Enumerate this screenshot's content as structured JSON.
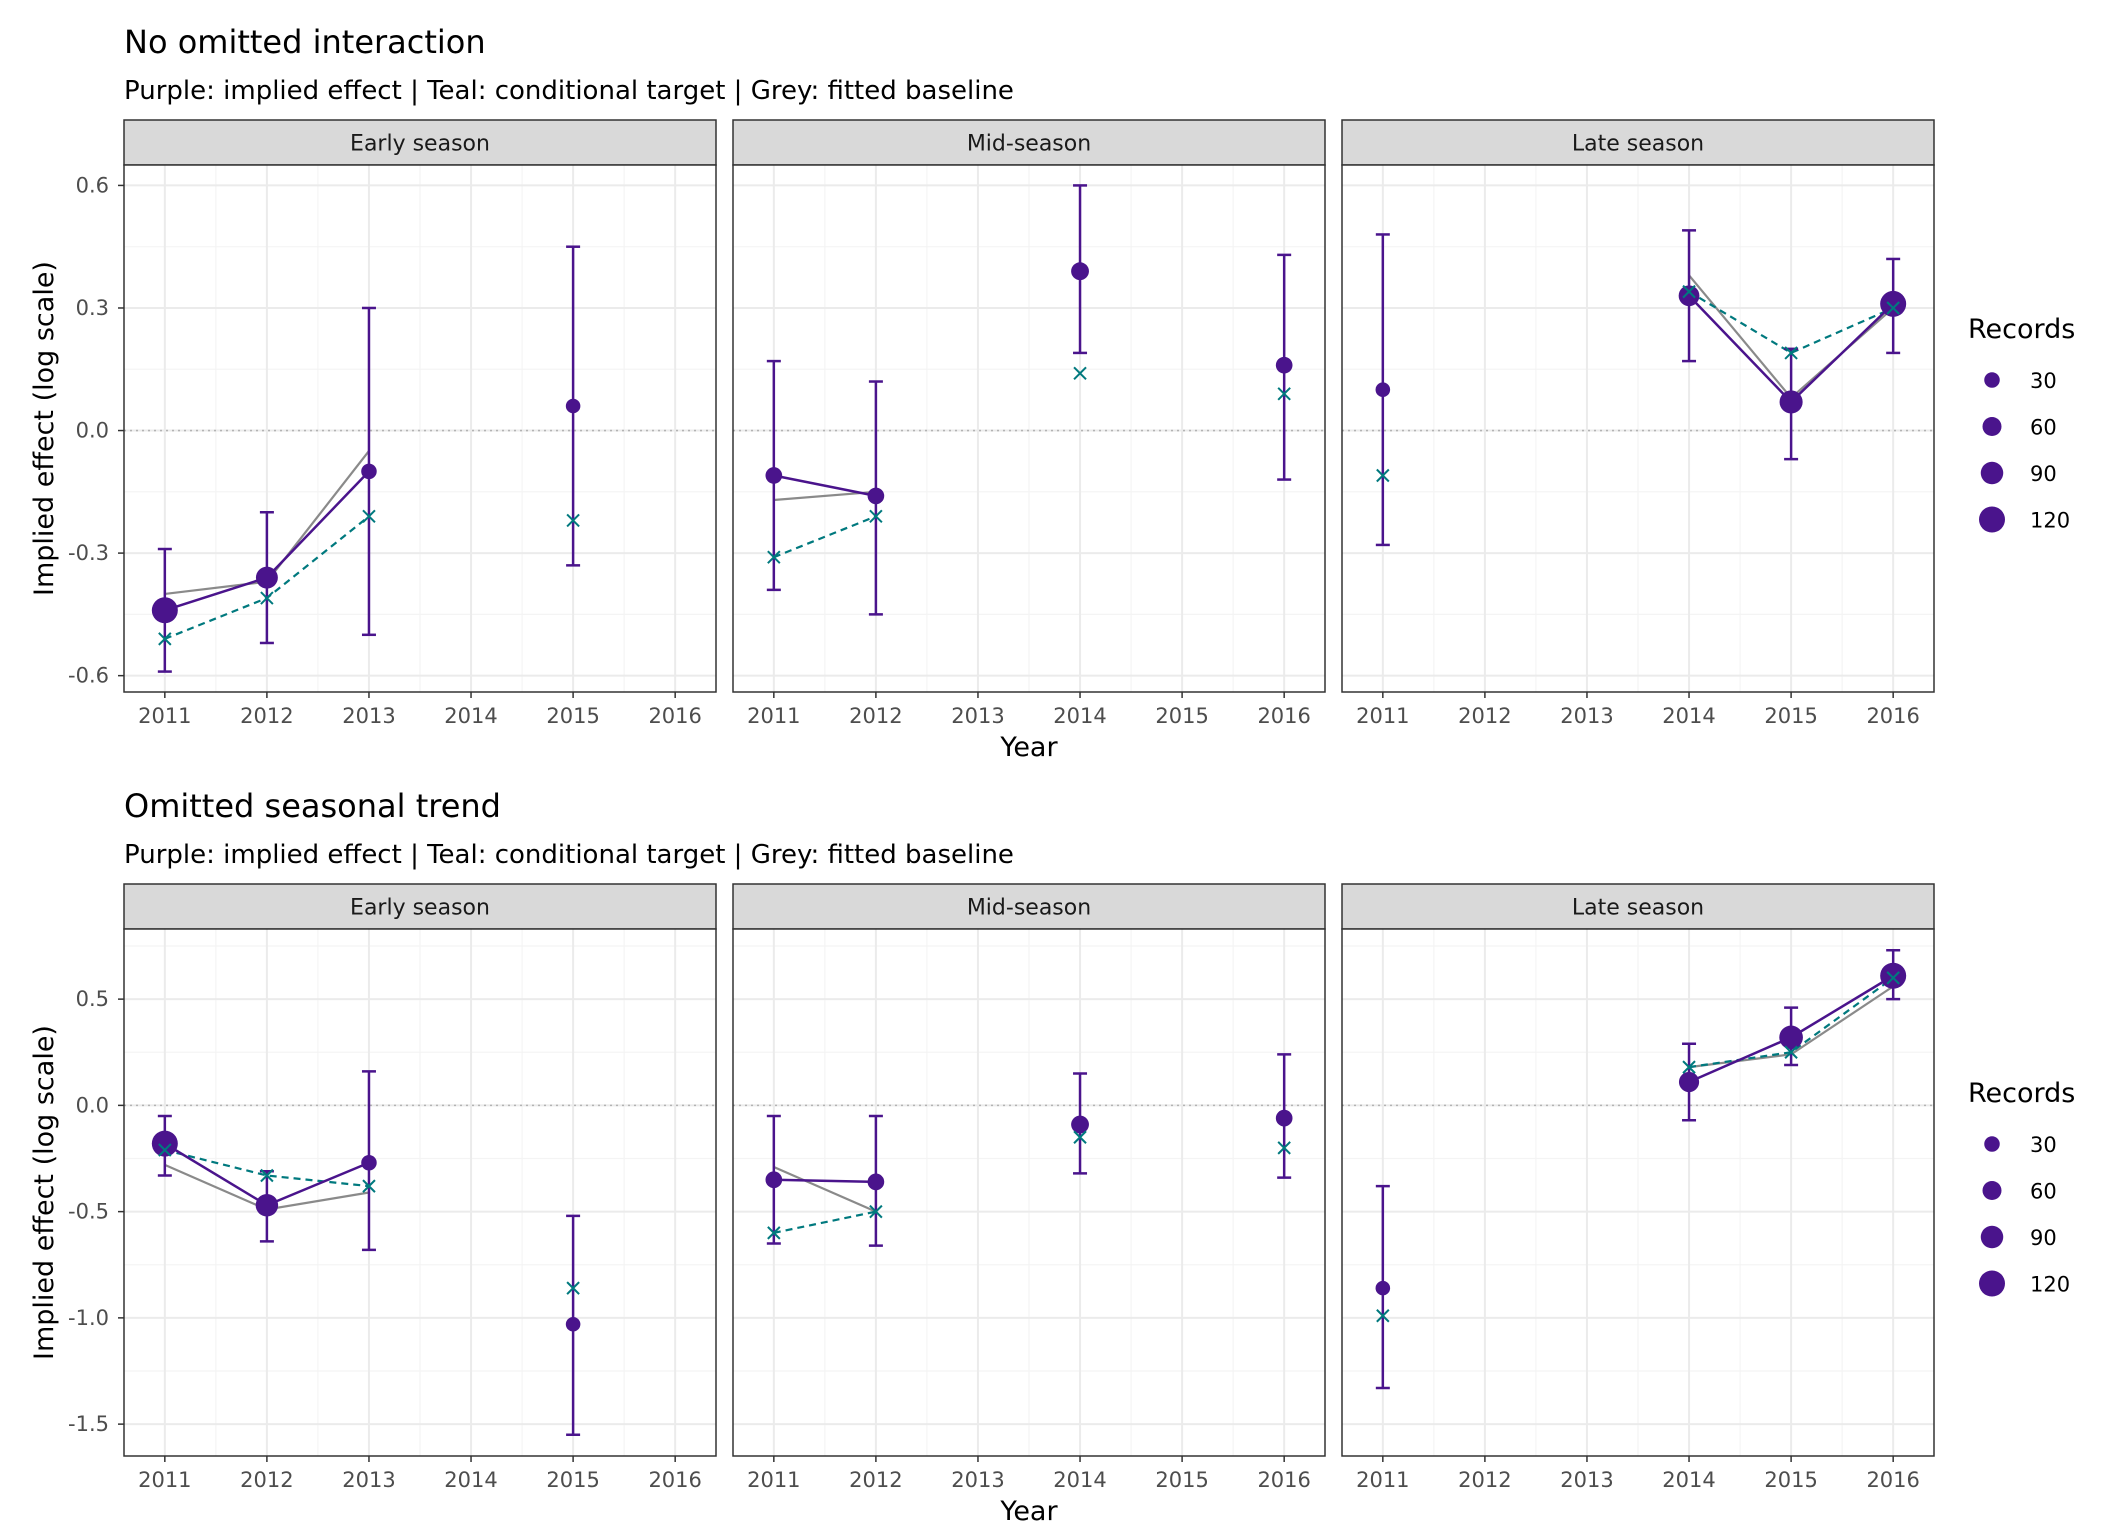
{
  "figure": {
    "ylabel": "Implied effect (log scale)",
    "xlabel": "Year",
    "legend_title": "Records",
    "legend_sizes": [
      30,
      60,
      90,
      120
    ],
    "panels": [
      "Early season",
      "Mid-season",
      "Late season"
    ],
    "x_ticks": [
      2011,
      2012,
      2013,
      2014,
      2015,
      2016
    ],
    "colors": {
      "implied": "#4a148c",
      "target": "#00797e",
      "baseline": "#8a8a8a",
      "strip_fill": "#d9d9d9",
      "grid_major": "#ebebeb",
      "grid_minor": "#f4f4f4",
      "zero_line": "#b3b3b3"
    }
  },
  "chart_data": [
    {
      "type": "line",
      "title": "No omitted interaction",
      "subtitle": "Purple: implied effect | Teal: conditional target | Grey: fitted baseline",
      "ylim": [
        -0.64,
        0.65
      ],
      "y_ticks": [
        0.6,
        0.3,
        0.0,
        -0.3,
        -0.6
      ],
      "y_tick_labels": [
        "0.6",
        "0.3",
        "0.0",
        "-0.3",
        "-0.6"
      ],
      "facets": [
        {
          "name": "Early season",
          "implied": [
            {
              "x": 2011,
              "y": -0.44,
              "lo": -0.59,
              "hi": -0.29,
              "records": 120
            },
            {
              "x": 2012,
              "y": -0.36,
              "lo": -0.52,
              "hi": -0.2,
              "records": 85
            },
            {
              "x": 2013,
              "y": -0.1,
              "lo": -0.5,
              "hi": 0.3,
              "records": 30
            },
            {
              "x": 2015,
              "y": 0.06,
              "lo": -0.33,
              "hi": 0.45,
              "records": 22
            }
          ],
          "target": [
            {
              "x": 2011,
              "y": -0.51
            },
            {
              "x": 2012,
              "y": -0.41
            },
            {
              "x": 2013,
              "y": -0.21
            },
            {
              "x": 2015,
              "y": -0.22
            }
          ],
          "baseline": [
            {
              "x": 2011,
              "y": -0.4
            },
            {
              "x": 2012,
              "y": -0.37
            },
            {
              "x": 2013,
              "y": -0.05
            }
          ],
          "implied_line_years": [
            2011,
            2012,
            2013
          ],
          "target_line_years": [
            2011,
            2012,
            2013
          ]
        },
        {
          "name": "Mid-season",
          "implied": [
            {
              "x": 2011,
              "y": -0.11,
              "lo": -0.39,
              "hi": 0.17,
              "records": 40
            },
            {
              "x": 2012,
              "y": -0.16,
              "lo": -0.45,
              "hi": 0.12,
              "records": 40
            },
            {
              "x": 2014,
              "y": 0.39,
              "lo": 0.19,
              "hi": 0.6,
              "records": 50
            },
            {
              "x": 2016,
              "y": 0.16,
              "lo": -0.12,
              "hi": 0.43,
              "records": 40
            }
          ],
          "target": [
            {
              "x": 2011,
              "y": -0.31
            },
            {
              "x": 2012,
              "y": -0.21
            },
            {
              "x": 2014,
              "y": 0.14
            },
            {
              "x": 2016,
              "y": 0.09
            }
          ],
          "baseline": [
            {
              "x": 2011,
              "y": -0.17
            },
            {
              "x": 2012,
              "y": -0.15
            }
          ],
          "implied_line_years": [
            2011,
            2012
          ],
          "target_line_years": [
            2011,
            2012
          ]
        },
        {
          "name": "Late season",
          "implied": [
            {
              "x": 2011,
              "y": 0.1,
              "lo": -0.28,
              "hi": 0.48,
              "records": 22
            },
            {
              "x": 2014,
              "y": 0.33,
              "lo": 0.17,
              "hi": 0.49,
              "records": 75
            },
            {
              "x": 2015,
              "y": 0.07,
              "lo": -0.07,
              "hi": 0.2,
              "records": 95
            },
            {
              "x": 2016,
              "y": 0.31,
              "lo": 0.19,
              "hi": 0.42,
              "records": 120
            }
          ],
          "target": [
            {
              "x": 2011,
              "y": -0.11
            },
            {
              "x": 2014,
              "y": 0.34
            },
            {
              "x": 2015,
              "y": 0.19
            },
            {
              "x": 2016,
              "y": 0.3
            }
          ],
          "baseline": [
            {
              "x": 2014,
              "y": 0.38
            },
            {
              "x": 2015,
              "y": 0.08
            },
            {
              "x": 2016,
              "y": 0.3
            }
          ],
          "implied_line_years": [
            2014,
            2015,
            2016
          ],
          "target_line_years": [
            2014,
            2015,
            2016
          ]
        }
      ]
    },
    {
      "type": "line",
      "title": "Omitted seasonal trend",
      "subtitle": "Purple: implied effect | Teal: conditional target | Grey: fitted baseline",
      "ylim": [
        -1.65,
        0.83
      ],
      "y_ticks": [
        0.5,
        0.0,
        -0.5,
        -1.0,
        -1.5
      ],
      "y_tick_labels": [
        "0.5",
        "0.0",
        "-0.5",
        "-1.0",
        "-1.5"
      ],
      "facets": [
        {
          "name": "Early season",
          "implied": [
            {
              "x": 2011,
              "y": -0.18,
              "lo": -0.33,
              "hi": -0.05,
              "records": 120
            },
            {
              "x": 2012,
              "y": -0.47,
              "lo": -0.64,
              "hi": -0.31,
              "records": 90
            },
            {
              "x": 2013,
              "y": -0.27,
              "lo": -0.68,
              "hi": 0.16,
              "records": 30
            },
            {
              "x": 2015,
              "y": -1.03,
              "lo": -1.55,
              "hi": -0.52,
              "records": 22
            }
          ],
          "target": [
            {
              "x": 2011,
              "y": -0.21
            },
            {
              "x": 2012,
              "y": -0.33
            },
            {
              "x": 2013,
              "y": -0.38
            },
            {
              "x": 2015,
              "y": -0.86
            }
          ],
          "baseline": [
            {
              "x": 2011,
              "y": -0.28
            },
            {
              "x": 2012,
              "y": -0.49
            },
            {
              "x": 2013,
              "y": -0.41
            }
          ],
          "implied_line_years": [
            2011,
            2012,
            2013
          ],
          "target_line_years": [
            2011,
            2012,
            2013
          ]
        },
        {
          "name": "Mid-season",
          "implied": [
            {
              "x": 2011,
              "y": -0.35,
              "lo": -0.65,
              "hi": -0.05,
              "records": 40
            },
            {
              "x": 2012,
              "y": -0.36,
              "lo": -0.66,
              "hi": -0.05,
              "records": 40
            },
            {
              "x": 2014,
              "y": -0.09,
              "lo": -0.32,
              "hi": 0.15,
              "records": 50
            },
            {
              "x": 2016,
              "y": -0.06,
              "lo": -0.34,
              "hi": 0.24,
              "records": 40
            }
          ],
          "target": [
            {
              "x": 2011,
              "y": -0.6
            },
            {
              "x": 2012,
              "y": -0.5
            },
            {
              "x": 2014,
              "y": -0.15
            },
            {
              "x": 2016,
              "y": -0.2
            }
          ],
          "baseline": [
            {
              "x": 2011,
              "y": -0.29
            },
            {
              "x": 2012,
              "y": -0.5
            }
          ],
          "implied_line_years": [
            2011,
            2012
          ],
          "target_line_years": [
            2011,
            2012
          ]
        },
        {
          "name": "Late season",
          "implied": [
            {
              "x": 2011,
              "y": -0.86,
              "lo": -1.33,
              "hi": -0.38,
              "records": 22
            },
            {
              "x": 2014,
              "y": 0.11,
              "lo": -0.07,
              "hi": 0.29,
              "records": 70
            },
            {
              "x": 2015,
              "y": 0.32,
              "lo": 0.19,
              "hi": 0.46,
              "records": 100
            },
            {
              "x": 2016,
              "y": 0.61,
              "lo": 0.5,
              "hi": 0.73,
              "records": 120
            }
          ],
          "target": [
            {
              "x": 2011,
              "y": -0.99
            },
            {
              "x": 2014,
              "y": 0.18
            },
            {
              "x": 2015,
              "y": 0.25
            },
            {
              "x": 2016,
              "y": 0.6
            }
          ],
          "baseline": [
            {
              "x": 2014,
              "y": 0.18
            },
            {
              "x": 2015,
              "y": 0.24
            },
            {
              "x": 2016,
              "y": 0.56
            }
          ],
          "implied_line_years": [
            2014,
            2015,
            2016
          ],
          "target_line_years": [
            2014,
            2015,
            2016
          ]
        }
      ]
    }
  ]
}
